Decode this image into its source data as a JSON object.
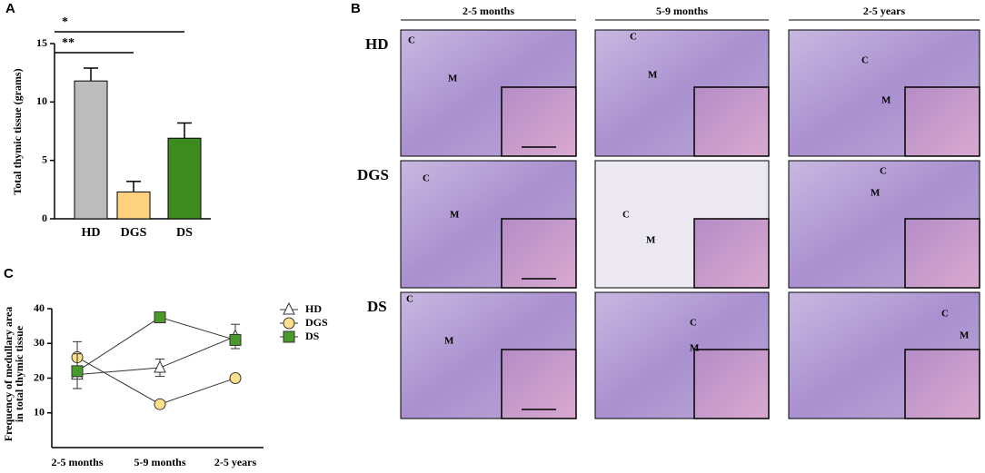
{
  "panels": {
    "a": "A",
    "b": "B",
    "c": "C"
  },
  "chart_data": [
    {
      "type": "bar",
      "ylabel": "Total thymic tissue (grams)",
      "categories": [
        "HD",
        "DGS",
        "DS"
      ],
      "series": [
        {
          "values": [
            11.8,
            2.3,
            6.9
          ],
          "errors": [
            1.1,
            0.9,
            1.3
          ],
          "colors": [
            "#bdbdbd",
            "#ffd27f",
            "#3d8b1e"
          ]
        }
      ],
      "ylim": [
        0,
        15
      ],
      "yticks": [
        0,
        5,
        10,
        15
      ],
      "significance": [
        {
          "label": "*",
          "between": [
            0,
            2
          ]
        },
        {
          "label": "**",
          "between": [
            0,
            1
          ]
        }
      ]
    },
    {
      "type": "line",
      "ylabel": [
        "Frequency of medullary area",
        "in total thymic tissue"
      ],
      "categories": [
        "2-5 months",
        "5-9 months",
        "2-5 years"
      ],
      "series": [
        {
          "name": "HD",
          "color": "#ffffff",
          "marker": "triangle",
          "values": [
            21,
            23,
            32
          ],
          "errors": [
            4,
            2.5,
            3.5
          ]
        },
        {
          "name": "DGS",
          "color": "#ffe08a",
          "marker": "circle",
          "values": [
            26,
            12.5,
            20
          ],
          "errors": [
            4.5,
            0,
            0
          ]
        },
        {
          "name": "DS",
          "color": "#4a9a2a",
          "marker": "square",
          "values": [
            22,
            37.5,
            31
          ],
          "errors": [
            5,
            0,
            1.5
          ]
        }
      ],
      "ylim": [
        0,
        40
      ],
      "yticks": [
        10,
        20,
        30,
        40
      ]
    }
  ],
  "micrographs": {
    "columns": [
      "2-5 months",
      "5-9 months",
      "2-5 years"
    ],
    "rows": [
      {
        "label": "HD",
        "cells": [
          [
            "C",
            "M"
          ],
          [
            "C",
            "M"
          ],
          [
            "C",
            "M"
          ]
        ]
      },
      {
        "label": "DGS",
        "cells": [
          [
            "C",
            "M"
          ],
          [
            "C",
            "M"
          ],
          [
            "C",
            "M"
          ]
        ]
      },
      {
        "label": "DS",
        "cells": [
          [
            "C",
            "M"
          ],
          [
            "C",
            "M"
          ],
          [
            "C",
            "M"
          ]
        ]
      }
    ]
  }
}
